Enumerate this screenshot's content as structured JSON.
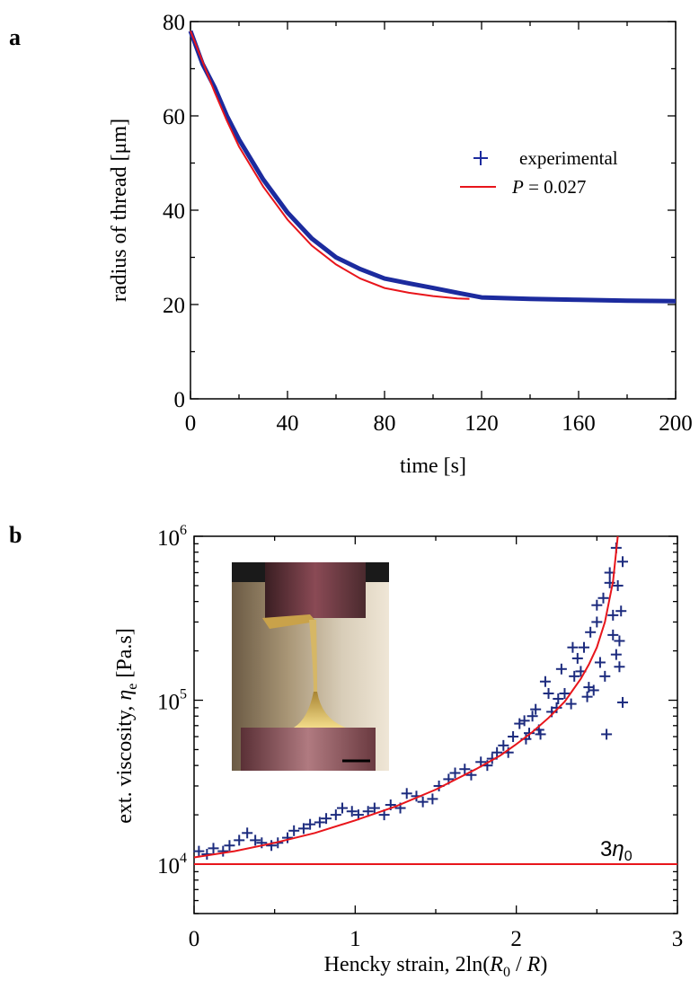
{
  "chart_data": [
    {
      "panel": "a",
      "type": "line",
      "xlabel": "time [s]",
      "ylabel": "radius of thread [μm]",
      "xlim": [
        0,
        200
      ],
      "ylim": [
        0,
        80
      ],
      "xticks": [
        "0",
        "40",
        "80",
        "120",
        "160",
        "200"
      ],
      "yticks": [
        "0",
        "20",
        "40",
        "60",
        "80"
      ],
      "legend_position": "upper-right",
      "series": [
        {
          "name": "experimental",
          "marker": "+",
          "color": "#1c2b9e",
          "x": [
            0,
            5,
            10,
            15,
            20,
            30,
            40,
            50,
            60,
            70,
            80,
            90,
            100,
            110,
            120,
            140,
            160,
            180,
            200
          ],
          "y": [
            78,
            71,
            66,
            60,
            55,
            46.5,
            39.5,
            34,
            30,
            27.5,
            25.5,
            24.5,
            23.5,
            22.5,
            21.5,
            21.2,
            21,
            20.8,
            20.7
          ]
        },
        {
          "name_prefix": "P",
          "name_suffix": " = 0.027",
          "color": "#e8151b",
          "x": [
            0,
            5,
            10,
            15,
            20,
            30,
            40,
            50,
            60,
            70,
            80,
            90,
            100,
            110,
            115
          ],
          "y": [
            78,
            71.5,
            65,
            59,
            53.5,
            45,
            38,
            32.5,
            28.5,
            25.5,
            23.5,
            22.5,
            21.8,
            21.3,
            21.2
          ]
        }
      ]
    },
    {
      "panel": "b",
      "type": "scatter",
      "xlabel_prefix": "Hencky strain, 2ln(",
      "xlabel_r0": "R",
      "xlabel_sub": "0",
      "xlabel_mid": " / ",
      "xlabel_r": "R",
      "xlabel_suffix": ")",
      "ylabel_prefix": "ext. viscosity, ",
      "ylabel_eta": "η",
      "ylabel_sub": "e",
      "ylabel_suffix": " [Pa.s]",
      "xlim": [
        0,
        3
      ],
      "ylim": [
        5000,
        1000000
      ],
      "yscale": "log",
      "xticks": [
        "0",
        "1",
        "2",
        "3"
      ],
      "yticks": [
        {
          "base": "10",
          "exp": "4",
          "value": 10000
        },
        {
          "base": "10",
          "exp": "5",
          "value": 100000
        },
        {
          "base": "10",
          "exp": "6",
          "value": 1000000
        }
      ],
      "annotation": {
        "coef": "3",
        "eta": "η",
        "sub": "0",
        "value": 10000
      },
      "inset": {
        "description": "photo",
        "has_scale_bar": true
      },
      "fit_curve": {
        "color": "#e8151b",
        "x": [
          0,
          0.25,
          0.5,
          0.75,
          1.0,
          1.25,
          1.5,
          1.75,
          1.9,
          2.0,
          2.1,
          2.2,
          2.3,
          2.4,
          2.45,
          2.5,
          2.55,
          2.6,
          2.63
        ],
        "y": [
          11000,
          12000,
          13500,
          15500,
          18500,
          22500,
          28500,
          38000,
          46000,
          54000,
          64000,
          78000,
          98000,
          135000,
          165000,
          210000,
          300000,
          530000,
          1000000
        ]
      },
      "baseline": {
        "y": 10000,
        "color": "#e8151b"
      },
      "points": {
        "color": "#1c2b7e",
        "marker": "+",
        "x": [
          0.03,
          0.08,
          0.12,
          0.18,
          0.22,
          0.28,
          0.33,
          0.38,
          0.42,
          0.48,
          0.52,
          0.58,
          0.62,
          0.68,
          0.72,
          0.78,
          0.82,
          0.88,
          0.92,
          0.98,
          1.02,
          1.08,
          1.12,
          1.18,
          1.22,
          1.28,
          1.32,
          1.38,
          1.42,
          1.48,
          1.52,
          1.58,
          1.62,
          1.68,
          1.72,
          1.78,
          1.82,
          1.88,
          1.92,
          1.98,
          2.02,
          2.06,
          2.1,
          2.14,
          2.18,
          2.22,
          2.26,
          2.3,
          2.34,
          2.38,
          2.42,
          2.46,
          2.5,
          2.54,
          2.58,
          2.6,
          2.62,
          2.63,
          2.64,
          2.65,
          2.66,
          2.62,
          2.55,
          2.45,
          2.35,
          2.25,
          2.15,
          2.05,
          1.95,
          1.85,
          2.4,
          2.5,
          2.58,
          2.64,
          2.66,
          2.6,
          2.52,
          2.44,
          2.36,
          2.28,
          2.2,
          2.12,
          2.08,
          2.48,
          2.56
        ],
        "y": [
          12000,
          11500,
          12500,
          12000,
          13000,
          14000,
          15500,
          14000,
          13500,
          13000,
          13500,
          14500,
          16000,
          16500,
          17500,
          18000,
          19000,
          20000,
          22000,
          21000,
          20000,
          21000,
          22000,
          20000,
          23000,
          22000,
          27000,
          26000,
          24000,
          25000,
          30000,
          33000,
          36000,
          38000,
          35000,
          42000,
          40000,
          48000,
          53000,
          60000,
          72000,
          58000,
          80000,
          66000,
          130000,
          85000,
          102000,
          110000,
          95000,
          180000,
          210000,
          260000,
          300000,
          420000,
          600000,
          250000,
          850000,
          500000,
          160000,
          350000,
          700000,
          190000,
          140000,
          120000,
          210000,
          90000,
          62000,
          75000,
          48000,
          44000,
          150000,
          380000,
          520000,
          230000,
          97000,
          330000,
          170000,
          105000,
          140000,
          155000,
          110000,
          88000,
          63000,
          115000,
          62000
        ]
      }
    }
  ],
  "panel_labels": {
    "a": "a",
    "b": "b"
  }
}
